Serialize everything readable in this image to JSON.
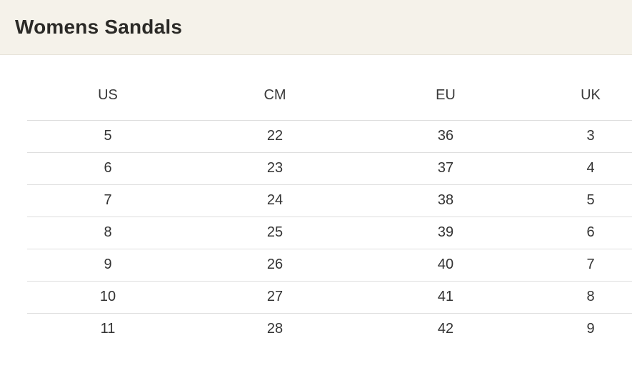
{
  "page": {
    "background_color": "#ffffff"
  },
  "header": {
    "title": "Womens Sandals",
    "background_color": "#f5f2ea",
    "title_color": "#2b2a27",
    "border_color": "#e7e3d9"
  },
  "table": {
    "columns": [
      "US",
      "CM",
      "EU",
      "UK"
    ],
    "rows": [
      [
        "5",
        "22",
        "36",
        "3"
      ],
      [
        "6",
        "23",
        "37",
        "4"
      ],
      [
        "7",
        "24",
        "38",
        "5"
      ],
      [
        "8",
        "25",
        "39",
        "6"
      ],
      [
        "9",
        "26",
        "40",
        "7"
      ],
      [
        "10",
        "27",
        "41",
        "8"
      ],
      [
        "11",
        "28",
        "42",
        "9"
      ]
    ],
    "text_color": "#333333",
    "row_border_color": "#dedede"
  },
  "chart_data": {
    "type": "table",
    "title": "Womens Sandals",
    "columns": [
      "US",
      "CM",
      "EU",
      "UK"
    ],
    "rows": [
      [
        5,
        22,
        36,
        3
      ],
      [
        6,
        23,
        37,
        4
      ],
      [
        7,
        24,
        38,
        5
      ],
      [
        8,
        25,
        39,
        6
      ],
      [
        9,
        26,
        40,
        7
      ],
      [
        10,
        27,
        41,
        8
      ],
      [
        11,
        28,
        42,
        9
      ]
    ]
  }
}
